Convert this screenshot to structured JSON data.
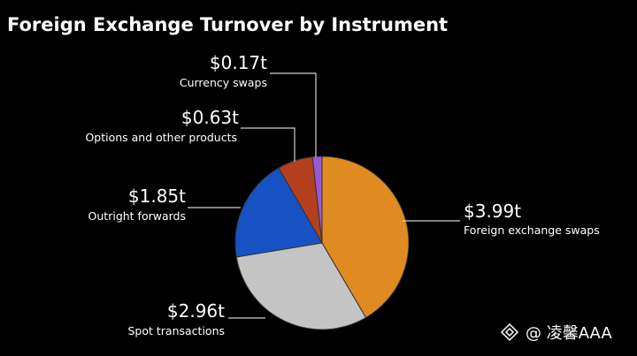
{
  "chart_data": {
    "type": "pie",
    "title": "Foreign Exchange Turnover by Instrument",
    "categories": [
      "Foreign exchange swaps",
      "Spot transactions",
      "Outright forwards",
      "Options and other products",
      "Currency swaps"
    ],
    "values": [
      3.99,
      2.96,
      1.85,
      0.63,
      0.17
    ],
    "value_labels": [
      "$3.99t",
      "$2.96t",
      "$1.85t",
      "$0.63t",
      "$0.17t"
    ],
    "colors": [
      "#e08a22",
      "#c4c4c4",
      "#1652c4",
      "#b33f1c",
      "#9b59d0"
    ],
    "start_angle_deg": 0,
    "direction": "clockwise",
    "legend": "none",
    "labels_position": "outside-with-leaders"
  },
  "watermark": {
    "icon": "diamond-logo-icon",
    "text": "@ 凌馨AAA"
  }
}
